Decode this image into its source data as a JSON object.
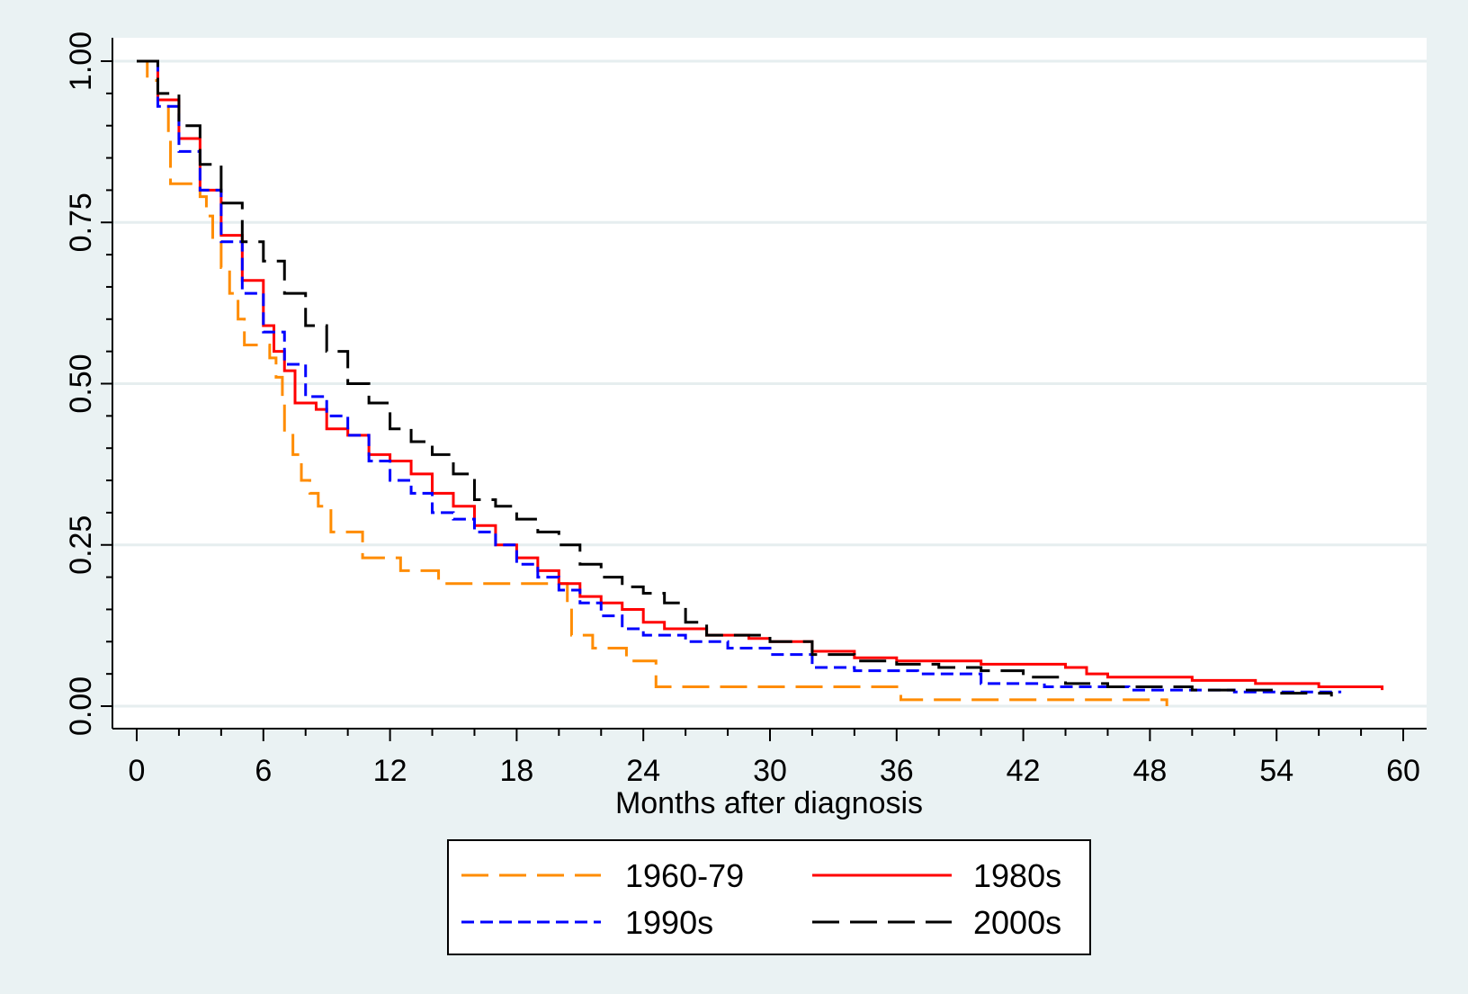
{
  "chart_data": {
    "type": "line",
    "step": true,
    "title": "",
    "xlabel": "Months after diagnosis",
    "ylabel": "",
    "xlim": [
      0,
      60
    ],
    "ylim": [
      0,
      1
    ],
    "x_ticks": [
      "0",
      "6",
      "12",
      "18",
      "24",
      "30",
      "36",
      "42",
      "48",
      "54",
      "60"
    ],
    "y_ticks": [
      "0.00",
      "0.25",
      "0.50",
      "0.75",
      "1.00"
    ],
    "grid": true,
    "legend": "bottom",
    "series": [
      {
        "name": "1960-79",
        "color": "#ff8c00",
        "dash": "long",
        "points": [
          [
            0,
            1.0
          ],
          [
            0.5,
            0.97
          ],
          [
            1.0,
            0.94
          ],
          [
            1.5,
            0.89
          ],
          [
            1.6,
            0.81
          ],
          [
            2.5,
            0.81
          ],
          [
            3.0,
            0.79
          ],
          [
            3.3,
            0.76
          ],
          [
            3.6,
            0.72
          ],
          [
            4.0,
            0.68
          ],
          [
            4.4,
            0.64
          ],
          [
            4.8,
            0.6
          ],
          [
            5.1,
            0.56
          ],
          [
            6.0,
            0.56
          ],
          [
            6.3,
            0.54
          ],
          [
            6.6,
            0.51
          ],
          [
            6.9,
            0.47
          ],
          [
            7.0,
            0.42
          ],
          [
            7.4,
            0.39
          ],
          [
            7.8,
            0.35
          ],
          [
            8.2,
            0.33
          ],
          [
            8.6,
            0.31
          ],
          [
            9.2,
            0.27
          ],
          [
            10.6,
            0.27
          ],
          [
            10.7,
            0.23
          ],
          [
            12.4,
            0.23
          ],
          [
            12.5,
            0.21
          ],
          [
            14.2,
            0.21
          ],
          [
            14.3,
            0.19
          ],
          [
            20.3,
            0.19
          ],
          [
            20.4,
            0.16
          ],
          [
            20.6,
            0.11
          ],
          [
            21.4,
            0.11
          ],
          [
            21.6,
            0.09
          ],
          [
            23.0,
            0.09
          ],
          [
            23.2,
            0.07
          ],
          [
            24.4,
            0.07
          ],
          [
            24.6,
            0.03
          ],
          [
            36.0,
            0.03
          ],
          [
            36.2,
            0.01
          ],
          [
            48.7,
            0.01
          ],
          [
            48.8,
            0.0
          ]
        ]
      },
      {
        "name": "1980s",
        "color": "#ff0000",
        "dash": "solid",
        "points": [
          [
            0,
            1.0
          ],
          [
            1.0,
            0.94
          ],
          [
            2.0,
            0.88
          ],
          [
            3.0,
            0.8
          ],
          [
            4.0,
            0.73
          ],
          [
            5.0,
            0.66
          ],
          [
            6.0,
            0.59
          ],
          [
            6.5,
            0.55
          ],
          [
            7.0,
            0.52
          ],
          [
            7.5,
            0.47
          ],
          [
            8.5,
            0.46
          ],
          [
            9.0,
            0.43
          ],
          [
            10.0,
            0.42
          ],
          [
            11.0,
            0.39
          ],
          [
            12.0,
            0.38
          ],
          [
            13.0,
            0.36
          ],
          [
            14.0,
            0.33
          ],
          [
            15.0,
            0.31
          ],
          [
            16.0,
            0.28
          ],
          [
            17.0,
            0.25
          ],
          [
            18.0,
            0.23
          ],
          [
            19.0,
            0.21
          ],
          [
            20.0,
            0.19
          ],
          [
            21.0,
            0.17
          ],
          [
            22.0,
            0.16
          ],
          [
            23.0,
            0.15
          ],
          [
            24.0,
            0.13
          ],
          [
            25.0,
            0.12
          ],
          [
            26.0,
            0.12
          ],
          [
            27.0,
            0.11
          ],
          [
            28.0,
            0.11
          ],
          [
            29.0,
            0.105
          ],
          [
            30.0,
            0.1
          ],
          [
            32.0,
            0.085
          ],
          [
            34.0,
            0.075
          ],
          [
            36.0,
            0.07
          ],
          [
            40.0,
            0.065
          ],
          [
            44.0,
            0.06
          ],
          [
            45.0,
            0.05
          ],
          [
            46.0,
            0.045
          ],
          [
            50.0,
            0.04
          ],
          [
            53.0,
            0.035
          ],
          [
            56.0,
            0.03
          ],
          [
            59.0,
            0.025
          ]
        ]
      },
      {
        "name": "1990s",
        "color": "#0000ff",
        "dash": "short",
        "points": [
          [
            0,
            1.0
          ],
          [
            1.0,
            0.93
          ],
          [
            2.0,
            0.86
          ],
          [
            3.0,
            0.8
          ],
          [
            4.0,
            0.72
          ],
          [
            5.0,
            0.64
          ],
          [
            6.0,
            0.58
          ],
          [
            7.0,
            0.53
          ],
          [
            8.0,
            0.48
          ],
          [
            9.0,
            0.45
          ],
          [
            10.0,
            0.42
          ],
          [
            11.0,
            0.38
          ],
          [
            12.0,
            0.35
          ],
          [
            13.0,
            0.33
          ],
          [
            14.0,
            0.3
          ],
          [
            15.0,
            0.29
          ],
          [
            16.0,
            0.27
          ],
          [
            17.0,
            0.25
          ],
          [
            18.0,
            0.22
          ],
          [
            19.0,
            0.2
          ],
          [
            20.0,
            0.18
          ],
          [
            21.0,
            0.16
          ],
          [
            22.0,
            0.14
          ],
          [
            23.0,
            0.12
          ],
          [
            24.0,
            0.11
          ],
          [
            26.0,
            0.1
          ],
          [
            28.0,
            0.09
          ],
          [
            30.0,
            0.08
          ],
          [
            32.0,
            0.06
          ],
          [
            34.0,
            0.055
          ],
          [
            37.0,
            0.05
          ],
          [
            40.0,
            0.035
          ],
          [
            43.0,
            0.03
          ],
          [
            47.0,
            0.025
          ],
          [
            52.0,
            0.022
          ],
          [
            57.0,
            0.02
          ]
        ]
      },
      {
        "name": "2000s",
        "color": "#000000",
        "dash": "long",
        "points": [
          [
            0,
            1.0
          ],
          [
            1.0,
            0.95
          ],
          [
            2.0,
            0.9
          ],
          [
            3.0,
            0.84
          ],
          [
            4.0,
            0.78
          ],
          [
            5.0,
            0.72
          ],
          [
            6.0,
            0.69
          ],
          [
            7.0,
            0.64
          ],
          [
            8.0,
            0.59
          ],
          [
            9.0,
            0.55
          ],
          [
            10.0,
            0.5
          ],
          [
            11.0,
            0.47
          ],
          [
            12.0,
            0.43
          ],
          [
            13.0,
            0.41
          ],
          [
            14.0,
            0.39
          ],
          [
            15.0,
            0.36
          ],
          [
            16.0,
            0.32
          ],
          [
            17.0,
            0.31
          ],
          [
            18.0,
            0.29
          ],
          [
            19.0,
            0.27
          ],
          [
            20.0,
            0.25
          ],
          [
            21.0,
            0.22
          ],
          [
            22.0,
            0.2
          ],
          [
            23.0,
            0.185
          ],
          [
            24.0,
            0.175
          ],
          [
            25.0,
            0.16
          ],
          [
            26.0,
            0.13
          ],
          [
            27.0,
            0.11
          ],
          [
            28.0,
            0.11
          ],
          [
            30.0,
            0.1
          ],
          [
            32.0,
            0.08
          ],
          [
            34.0,
            0.07
          ],
          [
            36.0,
            0.065
          ],
          [
            38.0,
            0.06
          ],
          [
            40.0,
            0.055
          ],
          [
            42.0,
            0.045
          ],
          [
            44.0,
            0.035
          ],
          [
            46.0,
            0.03
          ],
          [
            50.0,
            0.025
          ],
          [
            54.0,
            0.02
          ],
          [
            56.5,
            0.02
          ],
          [
            56.6,
            0.015
          ]
        ]
      }
    ]
  }
}
